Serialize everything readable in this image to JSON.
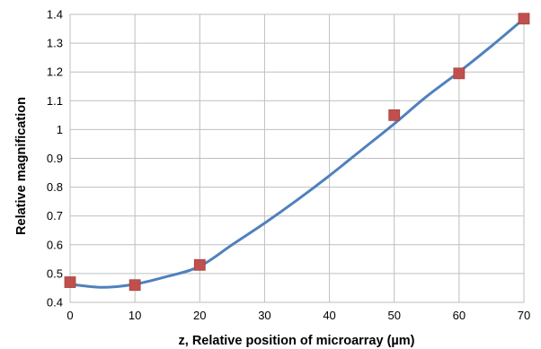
{
  "chart_data": {
    "type": "scatter",
    "title": "",
    "xlabel": "z, Relative position of microarray (µm)",
    "ylabel": "Relative magnification",
    "xlim": [
      0,
      70
    ],
    "ylim": [
      0.4,
      1.4
    ],
    "x_ticks": [
      "0",
      "10",
      "20",
      "30",
      "40",
      "50",
      "60",
      "70"
    ],
    "y_ticks": [
      "0.4",
      "0.5",
      "0.6",
      "0.7",
      "0.8",
      "0.9",
      "1",
      "1.1",
      "1.2",
      "1.3",
      "1.4"
    ],
    "grid": true,
    "series": [
      {
        "kind": "markers",
        "marker": "square",
        "color": "#C0504D",
        "x": [
          0,
          10,
          20,
          50,
          60,
          70
        ],
        "y": [
          0.47,
          0.46,
          0.53,
          1.05,
          1.195,
          1.385
        ]
      },
      {
        "kind": "line",
        "style": "smooth",
        "color": "#4F81BD",
        "x": [
          0,
          5,
          10,
          15,
          20,
          25,
          30,
          35,
          40,
          45,
          50,
          55,
          60,
          65,
          70
        ],
        "y": [
          0.463,
          0.452,
          0.463,
          0.49,
          0.525,
          0.6,
          0.675,
          0.755,
          0.84,
          0.93,
          1.02,
          1.115,
          1.2,
          1.29,
          1.385
        ]
      }
    ]
  }
}
